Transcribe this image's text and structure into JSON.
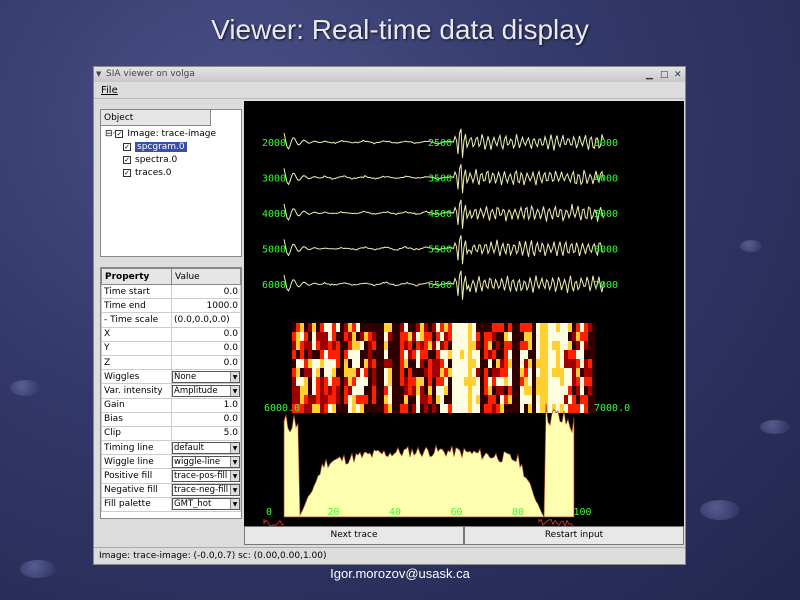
{
  "slide": {
    "title": "Viewer: Real-time data display",
    "footer": "Igor.morozov@usask.ca"
  },
  "window": {
    "title": "SIA viewer on volga",
    "menu": [
      "File"
    ],
    "status": "Image: trace-image: (-0.0,0.7) sc: (0.00,0.00,1.00)"
  },
  "tree": {
    "header": "Object",
    "root": "Image: trace-image",
    "children": [
      "spcgram.0",
      "spectra.0",
      "traces.0"
    ],
    "selected": "spcgram.0"
  },
  "properties": {
    "headers": [
      "Property",
      "Value"
    ],
    "rows": [
      {
        "name": "Time start",
        "value": "0.0"
      },
      {
        "name": "Time end",
        "value": "1000.0"
      },
      {
        "name": "- Time scale",
        "value": "(0.0,0.0,0.0)"
      },
      {
        "name": "X",
        "value": "0.0"
      },
      {
        "name": "Y",
        "value": "0.0"
      },
      {
        "name": "Z",
        "value": "0.0"
      },
      {
        "name": "Wiggles",
        "value": "None",
        "dropdown": true
      },
      {
        "name": "Var. intensity",
        "value": "Amplitude",
        "dropdown": true
      },
      {
        "name": "Gain",
        "value": "1.0"
      },
      {
        "name": "Bias",
        "value": "0.0"
      },
      {
        "name": "Clip",
        "value": "5.0"
      },
      {
        "name": "Timing line",
        "value": "default",
        "dropdown": true
      },
      {
        "name": "Wiggle line",
        "value": "wiggle-line",
        "dropdown": true
      },
      {
        "name": "Positive fill",
        "value": "trace-pos-fill",
        "dropdown": true
      },
      {
        "name": "Negative fill",
        "value": "trace-neg-fill",
        "dropdown": true
      },
      {
        "name": "Fill palette",
        "value": "GMT_hot",
        "dropdown": true
      }
    ]
  },
  "plot": {
    "trace_labels": [
      [
        "2000",
        "2500",
        "3000"
      ],
      [
        "3000",
        "3500",
        "4000"
      ],
      [
        "4000",
        "4500",
        "5000"
      ],
      [
        "5000",
        "5500",
        "6000"
      ],
      [
        "6000",
        "6500",
        "7000"
      ]
    ],
    "spectrogram_labels": [
      "6000.0",
      "7000.0"
    ],
    "spectrum_ticks": [
      "0",
      "20",
      "40",
      "60",
      "80",
      "100"
    ],
    "colors": {
      "label": "#33ff33",
      "trace": "#f0f0b0",
      "fill": "#ffffb0",
      "neg": "#c03030"
    }
  },
  "buttons": {
    "next": "Next trace",
    "restart": "Restart input"
  }
}
